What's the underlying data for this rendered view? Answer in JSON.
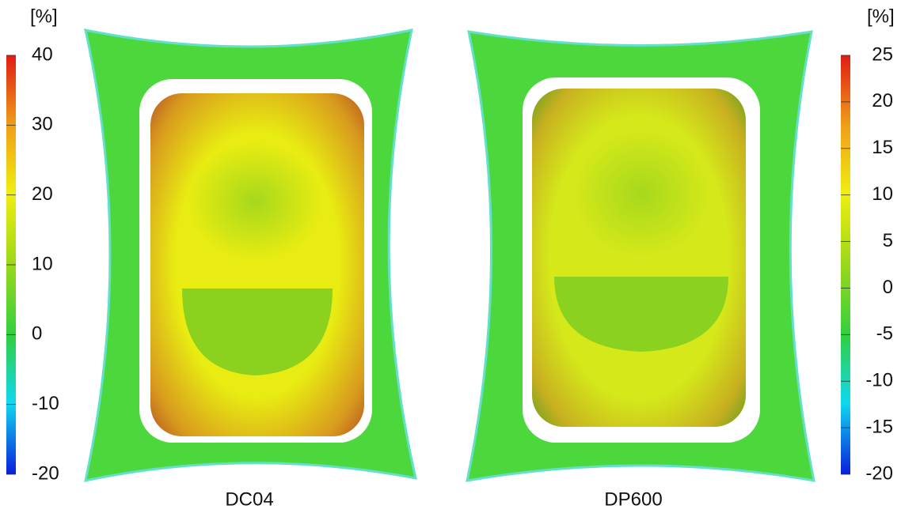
{
  "panels": [
    {
      "label": "DC04",
      "colorbar": {
        "unit": "[%]",
        "lim": [
          -20,
          40
        ],
        "ticks": [
          -20,
          -10,
          0,
          10,
          20,
          30,
          40
        ]
      }
    },
    {
      "label": "DP600",
      "colorbar": {
        "unit": "[%]",
        "lim": [
          -20,
          25
        ],
        "ticks": [
          -20,
          -15,
          -10,
          -5,
          0,
          5,
          10,
          15,
          20,
          25
        ]
      }
    }
  ]
}
